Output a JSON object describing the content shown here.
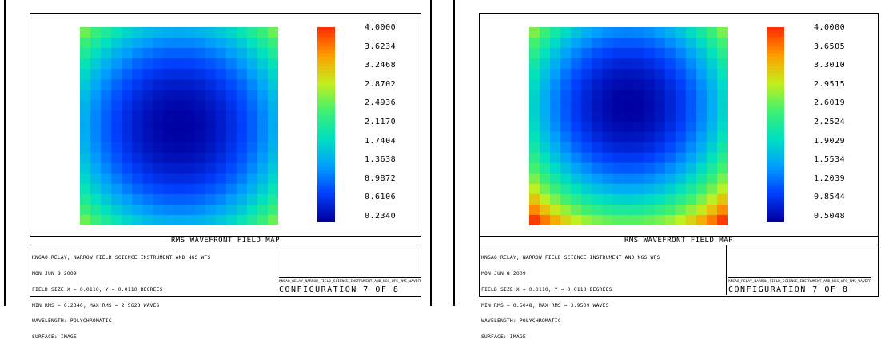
{
  "chart_data": [
    {
      "type": "heatmap",
      "title": "RMS WAVEFRONT FIELD MAP",
      "grid_size": [
        19,
        19
      ],
      "center_cell": [
        9,
        9
      ],
      "value_range": [
        0.234,
        4.0
      ],
      "min_rms": 0.234,
      "max_rms": 2.5623,
      "colorbar_ticks": [
        "4.0000",
        "3.6234",
        "3.2468",
        "2.8702",
        "2.4936",
        "2.1170",
        "1.7404",
        "1.3638",
        "0.9872",
        "0.6106",
        "0.2340"
      ],
      "notes": [
        "KNGAO RELAY, NARROW FIELD SCIENCE INSTRUMENT AND NGS WFS",
        "MON JUN 8 2009",
        "FIELD SIZE X = 0.0110, Y = 0.0110 DEGREES",
        "MIN RMS = 0.2340, MAX RMS = 2.5623 WAVES",
        "WAVELENGTH: POLYCHROMATIC",
        "SURFACE: IMAGE"
      ],
      "file_name": "KNGAO_RELAY_NARROW_FIELD_SCIENCE_INSTRUMENT_AND_NGS_WFS_RMS_WAVEFRONT_FIELD_MAP",
      "configuration": "CONFIGURATION 7 OF 8"
    },
    {
      "type": "heatmap",
      "title": "RMS WAVEFRONT FIELD MAP",
      "grid_size": [
        19,
        19
      ],
      "center_cell": [
        9,
        7
      ],
      "value_range": [
        0.5048,
        4.0
      ],
      "min_rms": 0.5048,
      "max_rms": 3.9509,
      "colorbar_ticks": [
        "4.0000",
        "3.6505",
        "3.3010",
        "2.9515",
        "2.6019",
        "2.2524",
        "1.9029",
        "1.5534",
        "1.2039",
        "0.8544",
        "0.5048"
      ],
      "notes": [
        "KNGAO RELAY, NARROW FIELD SCIENCE INSTRUMENT AND NGS WFS",
        "MON JUN 8 2009",
        "FIELD SIZE X = 0.0110, Y = 0.0110 DEGREES",
        "MIN RMS = 0.5048, MAX RMS = 3.9509 WAVES",
        "WAVELENGTH: POLYCHROMATIC",
        "SURFACE: IMAGE"
      ],
      "file_name": "KNGAO_RELAY_NARROW_FIELD_SCIENCE_INSTRUMENT_AND_NGS_WFS_RMS_WAVEFRONT_FIELD_MAP",
      "configuration": "CONFIGURATION 7 OF 8"
    }
  ],
  "colormap": [
    "#0000a0",
    "#0040ff",
    "#00a0ff",
    "#00e0c0",
    "#40f070",
    "#c0f020",
    "#ffa000",
    "#ff3000"
  ]
}
